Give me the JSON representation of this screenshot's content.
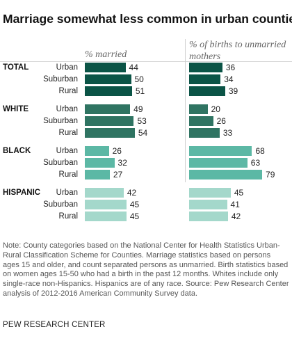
{
  "title": "Marriage somewhat less common in urban counties",
  "col_married": "% married",
  "col_births": "% of births to unmarried mothers",
  "note": "Note: County categories based on the National Center for Health Statistics Urban-Rural Classification Scheme for Counties. Marriage statistics based on persons ages 15 and older, and count separated persons as unmarried. Birth statistics based on women ages 15-50 who had a birth in the past 12 months. Whites include only single-race non-Hispanics. Hispanics are of any race.",
  "source": "Source: Pew Research Center analysis of 2012-2016 American Community Survey data.",
  "footer": "PEW RESEARCH CENTER",
  "chart_data": {
    "type": "bar",
    "orientation": "horizontal",
    "title": "Marriage somewhat less common in urban counties",
    "categories": [
      "Urban",
      "Suburban",
      "Rural"
    ],
    "panels": [
      {
        "label": "% married",
        "values_by_group": {
          "TOTAL": [
            44,
            50,
            51
          ],
          "WHITE": [
            49,
            53,
            54
          ],
          "BLACK": [
            26,
            32,
            27
          ],
          "HISPANIC": [
            42,
            45,
            45
          ]
        }
      },
      {
        "label": "% of births to unmarried mothers",
        "values_by_group": {
          "TOTAL": [
            36,
            34,
            39
          ],
          "WHITE": [
            20,
            26,
            33
          ],
          "BLACK": [
            68,
            63,
            79
          ],
          "HISPANIC": [
            45,
            41,
            42
          ]
        }
      }
    ],
    "groups": [
      {
        "name": "TOTAL",
        "color": "#0b5446",
        "married": [
          44,
          50,
          51
        ],
        "births": [
          36,
          34,
          39
        ]
      },
      {
        "name": "WHITE",
        "color": "#2f7462",
        "married": [
          49,
          53,
          54
        ],
        "births": [
          20,
          26,
          33
        ]
      },
      {
        "name": "BLACK",
        "color": "#5cb8a5",
        "married": [
          26,
          32,
          27
        ],
        "births": [
          68,
          63,
          79
        ]
      },
      {
        "name": "HISPANIC",
        "color": "#a4d8cb",
        "married": [
          42,
          45,
          45
        ],
        "births": [
          45,
          41,
          42
        ]
      }
    ]
  }
}
